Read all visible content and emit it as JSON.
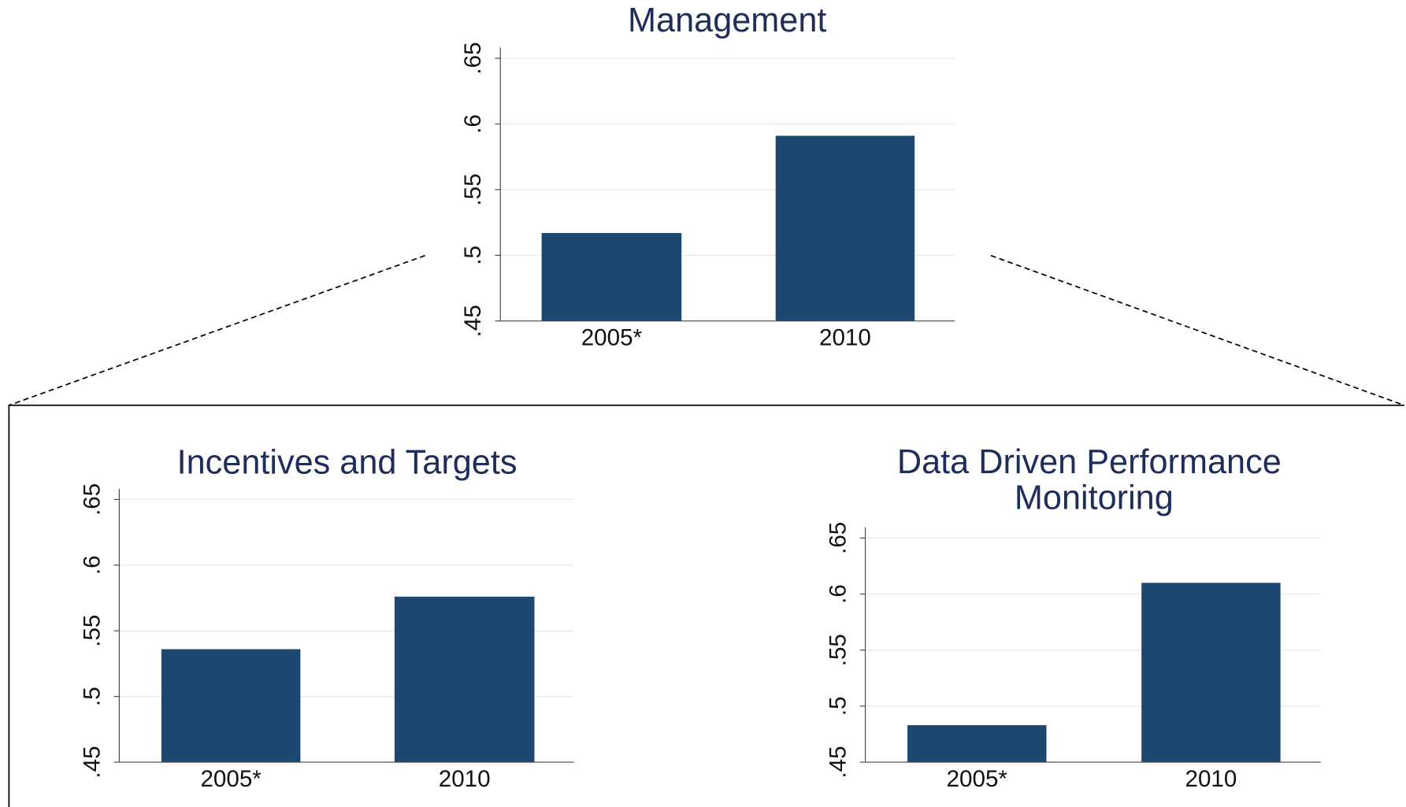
{
  "chart_data": [
    {
      "type": "bar",
      "title": "Management",
      "categories": [
        "2005*",
        "2010"
      ],
      "values": [
        0.517,
        0.591
      ],
      "color": "#1d4770",
      "ylim": [
        0.45,
        0.65
      ],
      "yticks": [
        {
          "value": 0.45,
          "label": ".45"
        },
        {
          "value": 0.5,
          "label": ".5"
        },
        {
          "value": 0.55,
          "label": ".55"
        },
        {
          "value": 0.6,
          "label": ".6"
        },
        {
          "value": 0.65,
          "label": ".65"
        }
      ],
      "grid": true
    },
    {
      "type": "bar",
      "title": "Incentives and Targets",
      "categories": [
        "2005*",
        "2010"
      ],
      "values": [
        0.536,
        0.576
      ],
      "color": "#1d4770",
      "ylim": [
        0.45,
        0.65
      ],
      "yticks": [
        {
          "value": 0.45,
          "label": ".45"
        },
        {
          "value": 0.5,
          "label": ".5"
        },
        {
          "value": 0.55,
          "label": ".55"
        },
        {
          "value": 0.6,
          "label": ".6"
        },
        {
          "value": 0.65,
          "label": ".65"
        }
      ],
      "grid": true
    },
    {
      "type": "bar",
      "title": "Data Driven Performance Monitoring",
      "categories": [
        "2005*",
        "2010"
      ],
      "values": [
        0.483,
        0.61
      ],
      "color": "#1d4770",
      "ylim": [
        0.45,
        0.65
      ],
      "yticks": [
        {
          "value": 0.45,
          "label": ".45"
        },
        {
          "value": 0.5,
          "label": ".5"
        },
        {
          "value": 0.55,
          "label": ".55"
        },
        {
          "value": 0.6,
          "label": ".6"
        },
        {
          "value": 0.65,
          "label": ".65"
        }
      ],
      "grid": true
    }
  ]
}
